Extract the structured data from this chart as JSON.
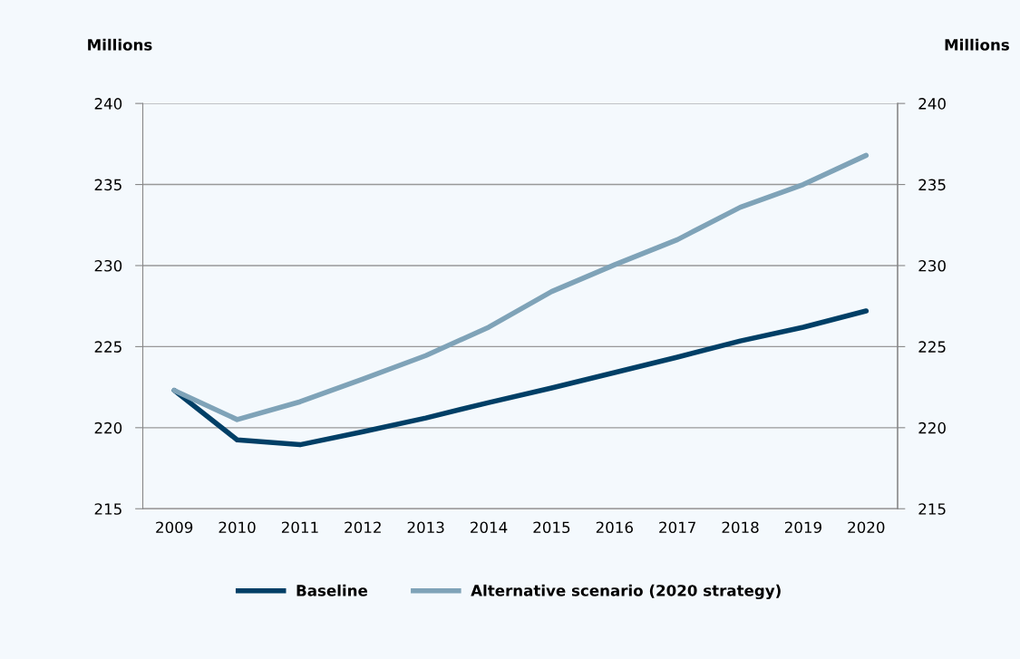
{
  "chart_data": {
    "type": "line",
    "ylabel": "Millions",
    "y2label": "Millions",
    "categories": [
      "2009",
      "2010",
      "2011",
      "2012",
      "2013",
      "2014",
      "2015",
      "2016",
      "2017",
      "2018",
      "2019",
      "2020"
    ],
    "series": [
      {
        "name": "Baseline",
        "color": "#003f66",
        "values": [
          222.3,
          219.25,
          218.95,
          219.75,
          220.6,
          221.55,
          222.45,
          223.4,
          224.35,
          225.35,
          226.2,
          227.2
        ]
      },
      {
        "name": "Alternative scenario (2020 strategy)",
        "color": "#7fa3b8",
        "values": [
          222.3,
          220.5,
          221.6,
          223.0,
          224.45,
          226.2,
          228.4,
          230.05,
          231.6,
          233.6,
          235.0,
          236.8
        ]
      }
    ],
    "ylim": [
      215,
      240
    ],
    "yticks": [
      215,
      220,
      225,
      230,
      235,
      240
    ],
    "y2lim": [
      215,
      240
    ],
    "y2ticks": [
      215,
      220,
      225,
      230,
      235,
      240
    ],
    "grid": "y",
    "legend": "bottom",
    "marker": "none",
    "line_style": "solid"
  }
}
